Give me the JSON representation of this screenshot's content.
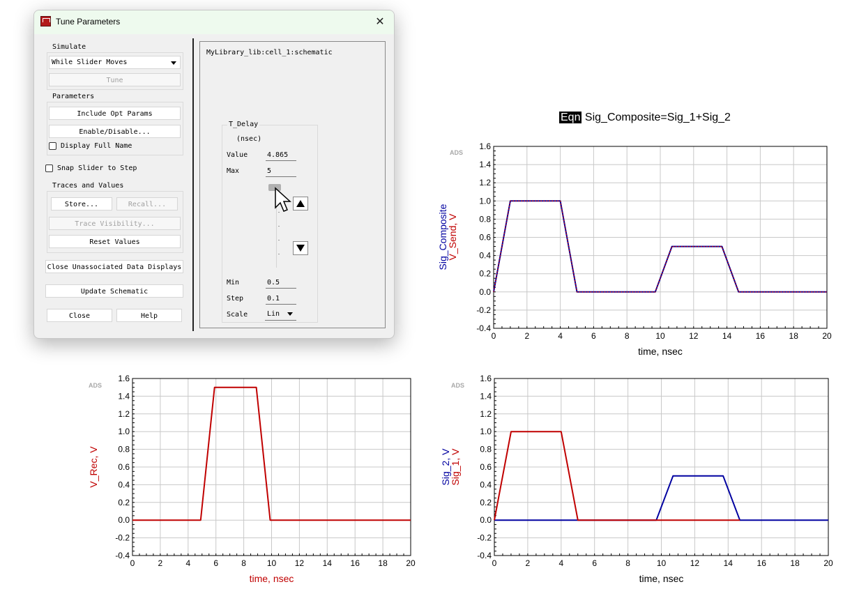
{
  "dialog": {
    "title": "Tune Parameters",
    "simulate": {
      "group_label": "Simulate",
      "mode": "While Slider Moves",
      "tune_label": "Tune"
    },
    "parameters": {
      "group_label": "Parameters",
      "include_opt": "Include Opt Params",
      "enable_disable": "Enable/Disable...",
      "display_full_name": "Display Full Name"
    },
    "snap_slider": "Snap Slider to Step",
    "traces": {
      "group_label": "Traces and Values",
      "store": "Store...",
      "recall": "Recall...",
      "trace_visibility": "Trace Visibility...",
      "reset_values": "Reset Values"
    },
    "close_unassociated": "Close Unassociated Data Displays",
    "update_schematic": "Update Schematic",
    "close": "Close",
    "help": "Help",
    "design_path": "MyLibrary_lib:cell_1:schematic",
    "tuner": {
      "name": "T_Delay",
      "unit": "(nsec)",
      "value_label": "Value",
      "value": "4.865",
      "max_label": "Max",
      "max": "5",
      "min_label": "Min",
      "min": "0.5",
      "step_label": "Step",
      "step": "0.1",
      "scale_label": "Scale",
      "scale": "Lin",
      "slider_fraction": 0.97
    }
  },
  "colors": {
    "red": "#c00000",
    "blue": "#0000a0",
    "grid": "#c8c8c8"
  },
  "plots": {
    "top_title_tag": "Eqn",
    "top_title": "Sig_Composite=Sig_1+Sig_2"
  },
  "chart_data": [
    {
      "type": "line",
      "id": "composite",
      "watermark": "ADS",
      "xlabel": "time, nsec",
      "ylabel_series": [
        "Sig_Composite",
        "V_Send, V"
      ],
      "xlim": [
        0,
        20
      ],
      "ylim": [
        -0.4,
        1.6
      ],
      "xticks": [
        "0",
        "2",
        "4",
        "6",
        "8",
        "10",
        "12",
        "14",
        "16",
        "18",
        "20"
      ],
      "yticks": [
        "-0.4",
        "-0.2",
        "0.0",
        "0.2",
        "0.4",
        "0.6",
        "0.8",
        "1.0",
        "1.2",
        "1.4",
        "1.6"
      ],
      "series": [
        {
          "name": "Sig_Composite",
          "color": "blue",
          "x": [
            0,
            1,
            4,
            5,
            9.7,
            10.7,
            13.7,
            14.7,
            20
          ],
          "y": [
            0,
            1,
            1,
            0,
            0,
            0.5,
            0.5,
            0,
            0
          ]
        },
        {
          "name": "V_Send, V",
          "color": "red",
          "dashed": true,
          "x": [
            0,
            1,
            4,
            5,
            9.7,
            10.7,
            13.7,
            14.7,
            20
          ],
          "y": [
            0,
            1,
            1,
            0,
            0,
            0.5,
            0.5,
            0,
            0
          ]
        }
      ]
    },
    {
      "type": "line",
      "id": "rec",
      "watermark": "ADS",
      "xlabel": "time, nsec",
      "ylabel_series": [
        "V_Rec, V"
      ],
      "xlim": [
        0,
        20
      ],
      "ylim": [
        -0.4,
        1.6
      ],
      "xticks": [
        "0",
        "2",
        "4",
        "6",
        "8",
        "10",
        "12",
        "14",
        "16",
        "18",
        "20"
      ],
      "yticks": [
        "-0.4",
        "-0.2",
        "0.0",
        "0.2",
        "0.4",
        "0.6",
        "0.8",
        "1.0",
        "1.2",
        "1.4",
        "1.6"
      ],
      "series": [
        {
          "name": "V_Rec, V",
          "color": "red",
          "x": [
            0,
            4.9,
            5.9,
            8.9,
            9.9,
            20
          ],
          "y": [
            0,
            0,
            1.5,
            1.5,
            0,
            0
          ]
        }
      ]
    },
    {
      "type": "line",
      "id": "sigs",
      "watermark": "ADS",
      "xlabel": "time, nsec",
      "ylabel_series": [
        "Sig_2, V",
        "Sig_1, V"
      ],
      "xlim": [
        0,
        20
      ],
      "ylim": [
        -0.4,
        1.6
      ],
      "xticks": [
        "0",
        "2",
        "4",
        "6",
        "8",
        "10",
        "12",
        "14",
        "16",
        "18",
        "20"
      ],
      "yticks": [
        "-0.4",
        "-0.2",
        "0.0",
        "0.2",
        "0.4",
        "0.6",
        "0.8",
        "1.0",
        "1.2",
        "1.4",
        "1.6"
      ],
      "series": [
        {
          "name": "Sig_2, V",
          "color": "blue",
          "x": [
            0,
            9.7,
            10.7,
            13.7,
            14.7,
            20
          ],
          "y": [
            0,
            0,
            0.5,
            0.5,
            0,
            0
          ]
        },
        {
          "name": "Sig_1, V",
          "color": "red",
          "x": [
            0,
            1,
            4,
            5,
            14.7
          ],
          "y": [
            0,
            1,
            1,
            0,
            0
          ]
        }
      ]
    }
  ]
}
